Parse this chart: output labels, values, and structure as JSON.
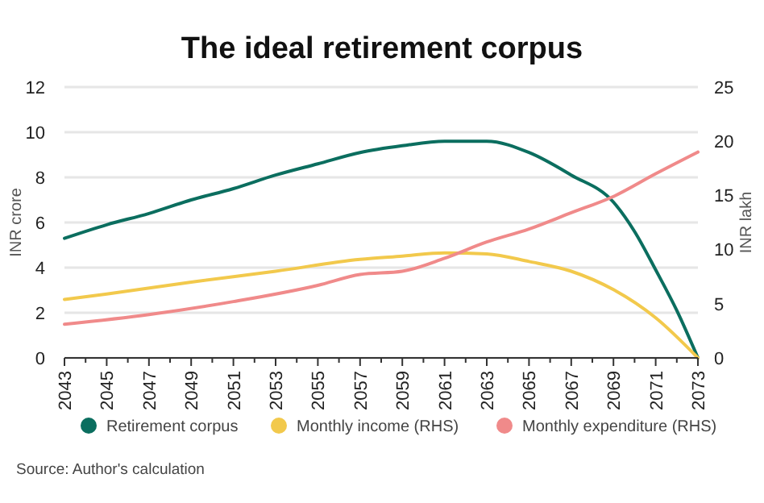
{
  "chart_data": {
    "type": "line",
    "title": "The ideal retirement corpus",
    "ylabel": "INR crore",
    "y2label": "INR lakh",
    "xlim": [
      2043,
      2073
    ],
    "xticks": [
      2043,
      2045,
      2047,
      2049,
      2051,
      2053,
      2055,
      2057,
      2059,
      2061,
      2063,
      2065,
      2067,
      2069,
      2071,
      2073
    ],
    "ylim": [
      0,
      12
    ],
    "yticks": [
      0,
      2,
      4,
      6,
      8,
      10,
      12
    ],
    "y2lim": [
      0,
      25
    ],
    "y2ticks": [
      0,
      5,
      10,
      15,
      20,
      25
    ],
    "grid": "y",
    "legend": "bottom",
    "marker": "none",
    "line_style": "solid",
    "annotations": [
      "Source: Author's calculation"
    ],
    "series": [
      {
        "name": "Retirement corpus",
        "color": "#0b6e5f",
        "x": [
          2043,
          2045,
          2047,
          2049,
          2051,
          2053,
          2055,
          2057,
          2059,
          2061,
          2062,
          2063,
          2065,
          2067,
          2069,
          2070,
          2071,
          2072,
          2073
        ],
        "values": [
          5.3,
          5.9,
          6.4,
          7.0,
          7.5,
          8.1,
          8.6,
          9.1,
          9.4,
          9.6,
          9.6,
          9.6,
          9.1,
          8.1,
          6.9,
          5.6,
          3.9,
          2.1,
          0
        ]
      },
      {
        "name": "Monthly income (RHS)",
        "color": "#f2c94c",
        "axis": "y2",
        "x": [
          2043,
          2045,
          2049,
          2053,
          2057,
          2059,
          2061,
          2063,
          2065,
          2067,
          2069,
          2071,
          2073
        ],
        "values": [
          5.4,
          5.9,
          7.0,
          8.0,
          9.1,
          9.4,
          9.7,
          9.6,
          8.9,
          8.0,
          6.3,
          3.7,
          0
        ]
      },
      {
        "name": "Monthly expenditure (RHS)",
        "color": "#f08a8a",
        "axis": "y2",
        "x": [
          2043,
          2047,
          2051,
          2055,
          2057,
          2059,
          2061,
          2063,
          2065,
          2067,
          2069,
          2071,
          2073
        ],
        "values": [
          3.1,
          4.0,
          5.2,
          6.7,
          7.7,
          8.0,
          9.2,
          10.7,
          11.9,
          13.4,
          14.9,
          17.0,
          19.0
        ]
      }
    ]
  }
}
